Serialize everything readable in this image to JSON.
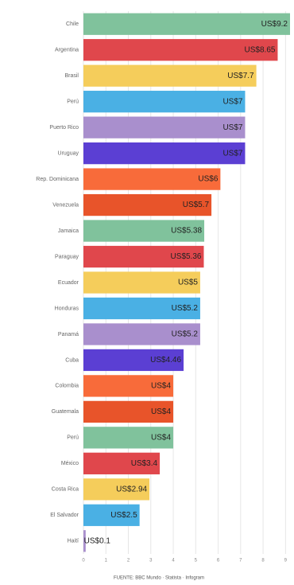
{
  "chart_data": {
    "type": "barh",
    "categories": [
      "Chile",
      "Argentina",
      "Brasil",
      "Perú",
      "Puerto Rico",
      "Uruguay",
      "Rep. Dominicana",
      "Venezuela",
      "Jamaica",
      "Paraguay",
      "Ecuador",
      "Honduras",
      "Panamá",
      "Cuba",
      "Colombia",
      "Guatemala",
      "Perú",
      "México",
      "Costa Rica",
      "El Salvador",
      "Haití"
    ],
    "values": [
      9.2,
      8.65,
      7.7,
      7.2,
      7.2,
      7.2,
      6.1,
      5.7,
      5.38,
      5.36,
      5.2,
      5.2,
      5.2,
      4.46,
      4,
      4,
      4,
      3.4,
      2.94,
      2.5,
      0.1
    ],
    "value_labels": [
      "US$9.2",
      "US$8.65",
      "US$7.7",
      "US$7",
      "US$7",
      "US$7",
      "US$6",
      "US$5.7",
      "US$5.38",
      "US$5.36",
      "US$5",
      "US$5.2",
      "US$5.2",
      "US$4.46",
      "US$4",
      "US$4",
      "US$4",
      "US$3.4",
      "US$2.94",
      "US$2.5",
      "US$0.1"
    ],
    "colors": [
      "#80c29c",
      "#e0474c",
      "#f5cd5b",
      "#4ab0e4",
      "#a98fcd",
      "#5b3fd3",
      "#f86b3a",
      "#e8542a"
    ],
    "xlim": [
      0,
      9.2
    ],
    "xticks": [
      0,
      1,
      2,
      3,
      4,
      5,
      6,
      7,
      8,
      9
    ],
    "grid": true,
    "source": "FUENTE: BBC Mundo · Statista · Infogram"
  }
}
